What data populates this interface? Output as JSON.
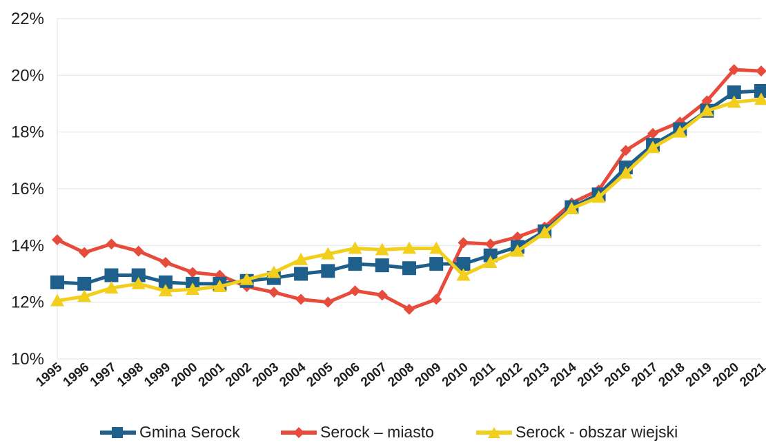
{
  "chart_data": {
    "type": "line",
    "categories": [
      "1995",
      "1996",
      "1997",
      "1998",
      "1999",
      "2000",
      "2001",
      "2002",
      "2003",
      "2004",
      "2005",
      "2006",
      "2007",
      "2008",
      "2009",
      "2010",
      "2011",
      "2012",
      "2013",
      "2014",
      "2015",
      "2016",
      "2017",
      "2018",
      "2019",
      "2020",
      "2021"
    ],
    "ylim": [
      0.1,
      0.22
    ],
    "yticks": [
      "10%",
      "12%",
      "14%",
      "16%",
      "18%",
      "20%",
      "22%"
    ],
    "ytick_values": [
      0.1,
      0.12,
      0.14,
      0.16,
      0.18,
      0.2,
      0.22
    ],
    "grid": "horizontal",
    "legend_position": "bottom",
    "series": [
      {
        "name": "Gmina Serock",
        "color": "#1f5f8b",
        "marker": "square",
        "values": [
          0.127,
          0.1265,
          0.1295,
          0.1295,
          0.127,
          0.1265,
          0.1265,
          0.1275,
          0.1285,
          0.13,
          0.131,
          0.1335,
          0.133,
          0.132,
          0.1335,
          0.1335,
          0.1365,
          0.1395,
          0.145,
          0.1535,
          0.158,
          0.1675,
          0.1755,
          0.181,
          0.1875,
          0.194,
          0.1945
        ]
      },
      {
        "name": "Serock – miasto",
        "color": "#e64b3c",
        "marker": "diamond",
        "values": [
          0.142,
          0.1375,
          0.1405,
          0.138,
          0.134,
          0.1305,
          0.1295,
          0.1255,
          0.1235,
          0.121,
          0.12,
          0.124,
          0.1225,
          0.1175,
          0.121,
          0.141,
          0.1405,
          0.143,
          0.1465,
          0.155,
          0.1595,
          0.1735,
          0.1795,
          0.1835,
          0.191,
          0.202,
          0.2015
        ]
      },
      {
        "name": "Serock - obszar wiejski",
        "color": "#f2cf1c",
        "marker": "triangle",
        "values": [
          0.1205,
          0.122,
          0.125,
          0.1265,
          0.124,
          0.1245,
          0.1255,
          0.128,
          0.1305,
          0.135,
          0.137,
          0.139,
          0.1385,
          0.139,
          0.139,
          0.1295,
          0.134,
          0.138,
          0.1445,
          0.153,
          0.157,
          0.1655,
          0.1745,
          0.18,
          0.1875,
          0.1905,
          0.1915
        ]
      }
    ]
  }
}
